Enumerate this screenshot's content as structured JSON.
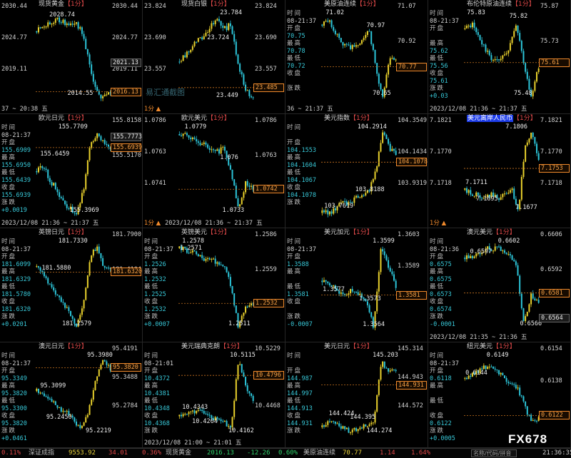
{
  "panels": [
    {
      "name": "现货黄金",
      "tag": "【1分】",
      "highlight": false,
      "left_axis": [
        "2030.44",
        "2024.77",
        "2019.11"
      ],
      "info": [],
      "right_axis": [
        "2030.44",
        "2024.77",
        "2019.11"
      ],
      "price_boxes": [
        {
          "value": "2021.13",
          "style": "dark"
        },
        {
          "value": "2016.13",
          "style": "orange"
        }
      ],
      "annotations": [
        "2028.74",
        "2014.55"
      ],
      "marker": "",
      "footer": "37 ~ 20:38 五"
    },
    {
      "name": "现货白银",
      "tag": "【1分】",
      "highlight": false,
      "left_axis": [
        "23.824",
        "23.690",
        "23.557"
      ],
      "info": [],
      "right_axis": [
        "23.824",
        "23.690",
        "23.557"
      ],
      "price_boxes": [
        {
          "value": "23.485",
          "style": "orange"
        }
      ],
      "annotations": [
        "23.784",
        "23.724",
        "23.449"
      ],
      "marker": "1分 ▲",
      "footer": ""
    },
    {
      "name": "美原油连续",
      "tag": "【1分】",
      "highlight": false,
      "left_axis": [],
      "info": [
        [
          "时间",
          "08-21:37"
        ],
        [
          "开盘",
          "70.75"
        ],
        [
          "最高",
          "70.78"
        ],
        [
          "最低",
          "70.72"
        ],
        [
          "收盘",
          ""
        ],
        [
          "涨跌",
          ""
        ]
      ],
      "right_axis": [
        "71.07",
        "70.92"
      ],
      "price_boxes": [
        {
          "value": "70.77",
          "style": "orange"
        }
      ],
      "annotations": [
        "71.02",
        "70.97",
        "70.65"
      ],
      "marker": "",
      "footer": "36 ~ 21:37 五"
    },
    {
      "name": "布伦特原油连续",
      "tag": "【1分】",
      "highlight": false,
      "left_axis": [],
      "info": [
        [
          "时间",
          "08-21:37"
        ],
        [
          "开盘",
          ""
        ],
        [
          "最高",
          "75.62"
        ],
        [
          "最低",
          "75.56"
        ],
        [
          "收盘",
          "75.61"
        ],
        [
          "涨跌",
          "+0.03"
        ]
      ],
      "right_axis": [
        "75.87",
        "75.73"
      ],
      "price_boxes": [
        {
          "value": "75.61",
          "style": "orange"
        }
      ],
      "annotations": [
        "75.83",
        "75.82",
        "75.48"
      ],
      "marker": "",
      "footer": "2023/12/08 21:36 ~ 21:37 五"
    },
    {
      "name": "欧元日元",
      "tag": "【1分】",
      "highlight": false,
      "left_axis": [],
      "info": [
        [
          "时间",
          "08-21:37"
        ],
        [
          "开盘",
          "155.6909"
        ],
        [
          "最高",
          "155.6950"
        ],
        [
          "最低",
          "155.6439"
        ],
        [
          "收盘",
          "155.6939"
        ],
        [
          "涨跌",
          "+0.0019"
        ]
      ],
      "right_axis": [
        "155.8158",
        "155.5170"
      ],
      "price_boxes": [
        {
          "value": "155.7773",
          "style": "dark"
        },
        {
          "value": "155.6939",
          "style": "orange"
        }
      ],
      "annotations": [
        "155.7709",
        "155.6459",
        "155.3969"
      ],
      "marker": "",
      "footer": "2023/12/08 21:36 ~ 21:37 五"
    },
    {
      "name": "欧元美元",
      "tag": "【1分】",
      "highlight": false,
      "left_axis": [
        "1.0786",
        "1.0763",
        "1.0741"
      ],
      "info": [],
      "right_axis": [
        "1.0786",
        "1.0763"
      ],
      "price_boxes": [
        {
          "value": "1.0742",
          "style": "orange"
        }
      ],
      "annotations": [
        "1.0779",
        "1.076",
        "1.0733"
      ],
      "marker": "1分 ▲",
      "footer": "2023/12/08 21:36 ~ 21:37 五"
    },
    {
      "name": "美元指数",
      "tag": "【1分】",
      "highlight": false,
      "left_axis": [],
      "info": [
        [
          "时间",
          ""
        ],
        [
          "开盘",
          "104.1553"
        ],
        [
          "最高",
          "104.1604"
        ],
        [
          "最低",
          "104.1067"
        ],
        [
          "收盘",
          "104.1078"
        ],
        [
          "涨跌",
          ""
        ]
      ],
      "right_axis": [
        "104.3549",
        "104.1434",
        "103.9319"
      ],
      "price_boxes": [
        {
          "value": "104.1078",
          "style": "orange"
        }
      ],
      "annotations": [
        "104.2914",
        "103.8188",
        "103.7619"
      ],
      "marker": "",
      "footer": ""
    },
    {
      "name": "美元离岸人民币",
      "tag": "【1分】",
      "highlight": true,
      "left_axis": [
        "7.1821",
        "7.1770",
        "7.1718"
      ],
      "info": [],
      "right_axis": [
        "7.1821",
        "7.1770",
        "7.1718"
      ],
      "price_boxes": [
        {
          "value": "7.1753",
          "style": "orange"
        }
      ],
      "annotations": [
        "7.1806",
        "7.1711",
        "7.1695",
        "7.1677"
      ],
      "marker": "1分 ▲",
      "footer": ""
    },
    {
      "name": "英镑日元",
      "tag": "【1分】",
      "highlight": false,
      "left_axis": [],
      "info": [
        [
          "时间",
          "08-21:37"
        ],
        [
          "开盘",
          "181.6099"
        ],
        [
          "最高",
          "181.6329"
        ],
        [
          "最低",
          "181.5780"
        ],
        [
          "收盘",
          "181.6320"
        ],
        [
          "涨跌",
          "+0.0201"
        ]
      ],
      "right_axis": [
        "181.7900",
        "181.4104"
      ],
      "price_boxes": [
        {
          "value": "181.6320",
          "style": "orange"
        }
      ],
      "annotations": [
        "181.7330",
        "181.5880",
        "181.2579"
      ],
      "marker": "",
      "footer": ""
    },
    {
      "name": "英镑美元",
      "tag": "【1分】",
      "highlight": false,
      "left_axis": [],
      "info": [
        [
          "时间",
          "08-21:37"
        ],
        [
          "开盘",
          "1.2526"
        ],
        [
          "最高",
          "1.2532"
        ],
        [
          "最低",
          "1.2525"
        ],
        [
          "收盘",
          "1.2532"
        ],
        [
          "涨跌",
          "+0.0007"
        ]
      ],
      "right_axis": [
        "1.2586",
        "1.2559"
      ],
      "price_boxes": [
        {
          "value": "1.2532",
          "style": "orange"
        }
      ],
      "annotations": [
        "1.2578",
        "1.2571",
        "1.2511"
      ],
      "marker": "",
      "footer": ""
    },
    {
      "name": "美元加元",
      "tag": "【1分】",
      "highlight": false,
      "left_axis": [],
      "info": [
        [
          "时间",
          "08-21:37"
        ],
        [
          "开盘",
          "1.3588"
        ],
        [
          "最高",
          ""
        ],
        [
          "最低",
          "1.3581"
        ],
        [
          "收盘",
          ""
        ],
        [
          "涨跌",
          "-0.0007"
        ]
      ],
      "right_axis": [
        "1.3603",
        "1.3589",
        "1.3575"
      ],
      "price_boxes": [
        {
          "value": "1.3581",
          "style": "orange"
        }
      ],
      "annotations": [
        "1.3599",
        "1.3577",
        "1.3573",
        "1.3564"
      ],
      "marker": "",
      "footer": ""
    },
    {
      "name": "澳元美元",
      "tag": "【1分】",
      "highlight": false,
      "left_axis": [],
      "info": [
        [
          "时间",
          "08-21:36"
        ],
        [
          "开盘",
          "0.6575"
        ],
        [
          "最高",
          "0.6575"
        ],
        [
          "最低",
          "0.6573"
        ],
        [
          "收盘",
          "0.6574"
        ],
        [
          "涨跌",
          "-0.0001"
        ]
      ],
      "right_axis": [
        "0.6606",
        "0.6592"
      ],
      "price_boxes": [
        {
          "value": "0.6581",
          "style": "orange"
        },
        {
          "value": "0.6564",
          "style": "dark"
        }
      ],
      "annotations": [
        "0.6602",
        "0.6597",
        "0.6566"
      ],
      "marker": "",
      "footer": "2023/12/08 21:35 ~ 21:36 五"
    },
    {
      "name": "澳元日元",
      "tag": "【1分】",
      "highlight": false,
      "left_axis": [],
      "info": [
        [
          "时间",
          "08-21:37"
        ],
        [
          "开盘",
          "95.3349"
        ],
        [
          "最高",
          "95.3820"
        ],
        [
          "最低",
          "95.3300"
        ],
        [
          "收盘",
          "95.3820"
        ],
        [
          "涨跌",
          "+0.0461"
        ]
      ],
      "right_axis": [
        "95.4191",
        "95.3488",
        "95.2784"
      ],
      "price_boxes": [
        {
          "value": "95.3820",
          "style": "orange"
        }
      ],
      "annotations": [
        "95.3980",
        "95.3099",
        "95.2450",
        "95.2219"
      ],
      "marker": "",
      "footer": ""
    },
    {
      "name": "美元瑞典克朗",
      "tag": "【1分】",
      "highlight": false,
      "left_axis": [],
      "info": [
        [
          "时间",
          "08-21:01"
        ],
        [
          "开盘",
          "10.4372"
        ],
        [
          "最高",
          "10.4381"
        ],
        [
          "最低",
          "10.4348"
        ],
        [
          "收盘",
          "10.4368"
        ],
        [
          "涨跌",
          ""
        ]
      ],
      "right_axis": [
        "10.5229",
        "10.4849",
        "10.4468"
      ],
      "price_boxes": [
        {
          "value": "10.4796",
          "style": "orange"
        }
      ],
      "annotations": [
        "10.5115",
        "10.4343",
        "10.4264",
        "10.4162"
      ],
      "marker": "",
      "footer": "2023/12/08 21:00 ~ 21:01 五"
    },
    {
      "name": "美元日元",
      "tag": "【1分】",
      "highlight": false,
      "left_axis": [],
      "info": [
        [
          "时间",
          ""
        ],
        [
          "开盘",
          "144.987"
        ],
        [
          "最高",
          "144.997"
        ],
        [
          "最低",
          "144.913"
        ],
        [
          "收盘",
          "144.931"
        ],
        [
          "涨跌",
          ""
        ]
      ],
      "right_axis": [
        "145.314",
        "144.943",
        "144.572"
      ],
      "price_boxes": [
        {
          "value": "144.931",
          "style": "orange"
        }
      ],
      "annotations": [
        "145.203",
        "144.424",
        "144.395",
        "144.274"
      ],
      "marker": "",
      "footer": ""
    },
    {
      "name": "纽元美元",
      "tag": "【1分】",
      "highlight": false,
      "left_axis": [],
      "info": [
        [
          "时间",
          "08-21:37"
        ],
        [
          "开盘",
          "0.6118"
        ],
        [
          "最高",
          ""
        ],
        [
          "最低",
          ""
        ],
        [
          "收盘",
          "0.6122"
        ],
        [
          "涨跌",
          "+0.0005"
        ]
      ],
      "right_axis": [
        "0.6154",
        "0.6138"
      ],
      "price_boxes": [
        {
          "value": "0.6122",
          "style": "orange"
        }
      ],
      "annotations": [
        "0.6149",
        "0.6144"
      ],
      "marker": "",
      "footer": ""
    }
  ],
  "watermark": "易汇通截图",
  "logo": "FX678",
  "colors": {
    "up": "#e8d02c",
    "down": "#2cc4d8",
    "price_line": "#c8731f"
  },
  "status_bar": {
    "items": [
      {
        "text": "0.11%",
        "color": "#e04848"
      },
      {
        "text": "深证成指",
        "color": "#bdbdbd"
      },
      {
        "text": "9553.92",
        "color": "#e8d23a"
      },
      {
        "text": "34.01",
        "color": "#e04848"
      },
      {
        "text": "0.36%",
        "color": "#e04848"
      },
      {
        "text": "现货黄金",
        "color": "#bdbdbd"
      },
      {
        "text": "2016.13",
        "color": "#2fd06a"
      },
      {
        "text": "-12.26",
        "color": "#2fd06a"
      },
      {
        "text": "0.60%",
        "color": "#2fd06a"
      },
      {
        "text": "美原油连续",
        "color": "#bdbdbd"
      },
      {
        "text": "70.77",
        "color": "#e8d23a"
      },
      {
        "text": "1.14",
        "color": "#e04848"
      },
      {
        "text": "1.64%",
        "color": "#e04848"
      }
    ],
    "search_placeholder": "名称/代码/拼音",
    "clock": "21:36:35"
  }
}
